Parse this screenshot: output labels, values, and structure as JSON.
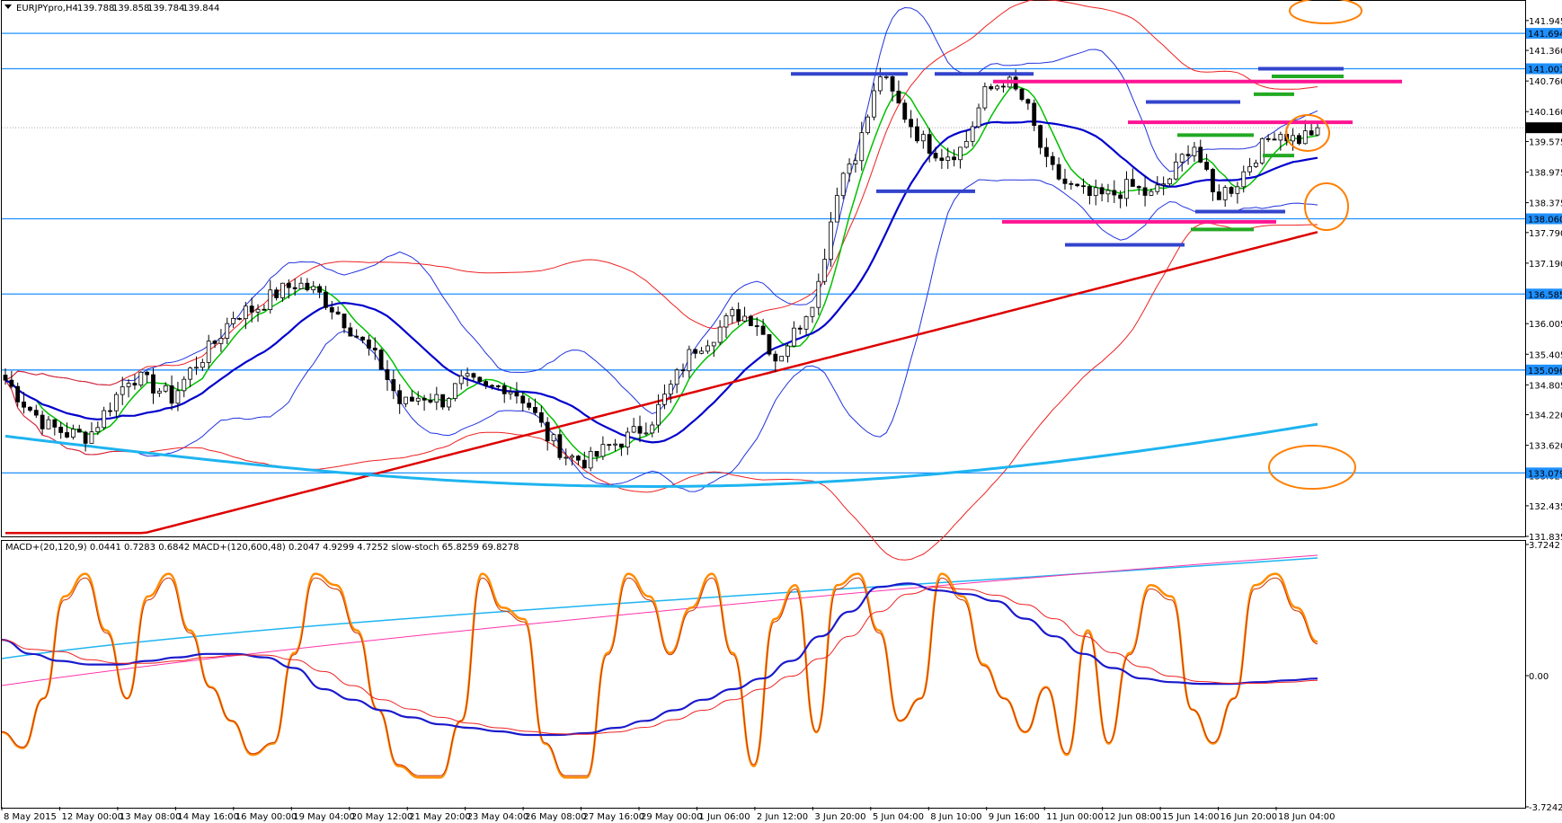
{
  "chart_data": {
    "type": "candlestick",
    "symbol_title": "EURJPYpro,H4",
    "ohlc": [
      "139.788",
      "139.858",
      "139.784",
      "139.844"
    ],
    "main_pane": {
      "ylim": [
        131.835,
        142.33
      ],
      "y_ticks": [
        "141.945",
        "141.360",
        "140.760",
        "140.160",
        "139.575",
        "138.975",
        "138.375",
        "137.790",
        "137.190",
        "136.605",
        "136.005",
        "135.405",
        "134.805",
        "134.220",
        "133.620",
        "133.020",
        "132.435",
        "131.835"
      ],
      "current_price": "139.844",
      "horizontal_levels": [
        {
          "value": 141.694,
          "label": "141.694",
          "color": "#1e90ff"
        },
        {
          "value": 141.001,
          "label": "141.001",
          "color": "#1e90ff"
        },
        {
          "value": 138.06,
          "label": "138.060",
          "color": "#1e90ff"
        },
        {
          "value": 136.585,
          "label": "136.585",
          "color": "#1e90ff"
        },
        {
          "value": 135.096,
          "label": "135.096",
          "color": "#1e90ff"
        },
        {
          "value": 133.079,
          "label": "133.079",
          "color": "#1e90ff"
        }
      ]
    },
    "macd_pane": {
      "title": "MACD+(20,120,9) 0.0441 0.7283 0.6842  MACD+(120,600,48) 0.2047 4.9299 4.7252  slow-stoch 65.8259 69.8278",
      "y_ticks": [
        "3.7242",
        "0.00",
        "-3.7242"
      ]
    },
    "x_ticks": [
      "8 May 2015",
      "12 May 00:00",
      "13 May 08:00",
      "14 May 16:00",
      "16 May 00:00",
      "19 May 04:00",
      "20 May 12:00",
      "21 May 20:00",
      "23 May 04:00",
      "26 May 08:00",
      "27 May 16:00",
      "29 May 00:00",
      "1 Jun 06:00",
      "2 Jun 12:00",
      "3 Jun 20:00",
      "5 Jun 04:00",
      "8 Jun 10:00",
      "9 Jun 16:00",
      "11 Jun 00:00",
      "12 Jun 08:00",
      "15 Jun 14:00",
      "16 Jun 20:00",
      "18 Jun 04:00"
    ],
    "close_path": [
      134.9,
      134.4,
      134.0,
      133.85,
      133.8,
      134.4,
      135.0,
      134.8,
      134.55,
      135.15,
      135.6,
      136.2,
      136.3,
      136.6,
      136.8,
      136.6,
      136.2,
      135.7,
      135.2,
      134.4,
      134.6,
      134.5,
      134.9,
      134.7,
      134.8,
      134.5,
      133.8,
      133.4,
      133.3,
      133.6,
      133.8,
      134.1,
      134.8,
      135.5,
      135.8,
      136.2,
      136.1,
      135.3,
      135.9,
      136.7,
      138.8,
      139.5,
      140.9,
      140.2,
      139.6,
      139.3,
      139.45,
      140.5,
      140.8,
      140.3,
      139.1,
      138.7,
      138.5,
      138.5,
      138.7,
      138.5,
      138.9,
      139.6,
      138.5,
      138.7,
      139.3,
      139.8,
      139.6,
      139.844
    ],
    "stoch_path": [
      25,
      18,
      40,
      85,
      95,
      70,
      40,
      85,
      95,
      70,
      45,
      30,
      15,
      20,
      60,
      95,
      90,
      70,
      35,
      10,
      5,
      5,
      30,
      95,
      80,
      75,
      20,
      5,
      5,
      60,
      95,
      85,
      60,
      80,
      95,
      60,
      10,
      75,
      90,
      25,
      90,
      95,
      70,
      30,
      40,
      95,
      85,
      55,
      40,
      25,
      45,
      15,
      70,
      20,
      60,
      90,
      85,
      35,
      20,
      40,
      90,
      95,
      80,
      65
    ],
    "macd_fast_path": [
      1.4,
      1.0,
      0.8,
      0.7,
      0.7,
      0.8,
      0.9,
      1.0,
      1.0,
      0.9,
      0.6,
      0.0,
      -0.3,
      -0.6,
      -0.8,
      -1.0,
      -1.1,
      -1.2,
      -1.3,
      -1.3,
      -1.25,
      -1.1,
      -0.9,
      -0.6,
      -0.3,
      0.0,
      0.3,
      0.8,
      1.5,
      2.2,
      2.9,
      3.0,
      2.8,
      2.7,
      2.5,
      2.0,
      1.5,
      1.0,
      0.6,
      0.3,
      0.2,
      0.15,
      0.15,
      0.2,
      0.25,
      0.3
    ],
    "colors": {
      "up_candle": "#ffffff",
      "down_candle": "#000000",
      "level_line": "#1e90ff",
      "ma_fast": "#00c000",
      "ma_mid": "#0000cc",
      "ma_slow": "#dd0000",
      "ma_long": "#1eb4f0",
      "stoch": "#ff8c00"
    }
  }
}
